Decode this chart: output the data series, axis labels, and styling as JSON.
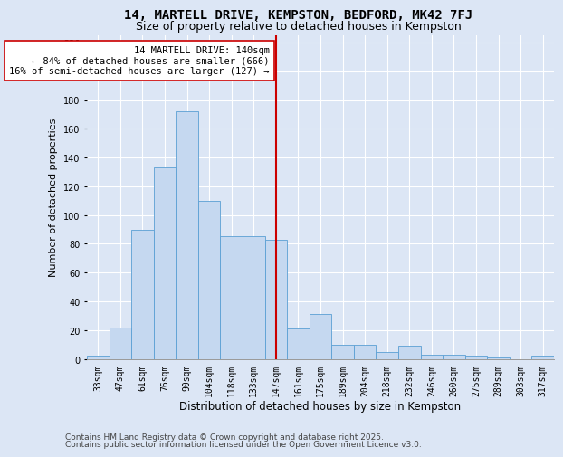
{
  "title1": "14, MARTELL DRIVE, KEMPSTON, BEDFORD, MK42 7FJ",
  "title2": "Size of property relative to detached houses in Kempston",
  "xlabel": "Distribution of detached houses by size in Kempston",
  "ylabel": "Number of detached properties",
  "categories": [
    "33sqm",
    "47sqm",
    "61sqm",
    "76sqm",
    "90sqm",
    "104sqm",
    "118sqm",
    "133sqm",
    "147sqm",
    "161sqm",
    "175sqm",
    "189sqm",
    "204sqm",
    "218sqm",
    "232sqm",
    "246sqm",
    "260sqm",
    "275sqm",
    "289sqm",
    "303sqm",
    "317sqm"
  ],
  "values": [
    2,
    22,
    90,
    133,
    172,
    110,
    85,
    85,
    83,
    21,
    31,
    10,
    10,
    5,
    9,
    3,
    3,
    2,
    1,
    0,
    2
  ],
  "bar_color": "#c5d8f0",
  "bar_edge_color": "#5a9fd4",
  "vline_x_index": 8,
  "annotation_title": "14 MARTELL DRIVE: 140sqm",
  "annotation_line1": "← 84% of detached houses are smaller (666)",
  "annotation_line2": "16% of semi-detached houses are larger (127) →",
  "annotation_box_color": "#ffffff",
  "annotation_box_edge": "#cc0000",
  "vline_color": "#cc0000",
  "ylim": [
    0,
    225
  ],
  "yticks": [
    0,
    20,
    40,
    60,
    80,
    100,
    120,
    140,
    160,
    180,
    200,
    220
  ],
  "background_color": "#dce6f5",
  "grid_color": "#ffffff",
  "footer1": "Contains HM Land Registry data © Crown copyright and database right 2025.",
  "footer2": "Contains public sector information licensed under the Open Government Licence v3.0.",
  "title1_fontsize": 10,
  "title2_fontsize": 9,
  "xlabel_fontsize": 8.5,
  "ylabel_fontsize": 8,
  "tick_fontsize": 7,
  "annotation_fontsize": 7.5,
  "footer_fontsize": 6.5
}
